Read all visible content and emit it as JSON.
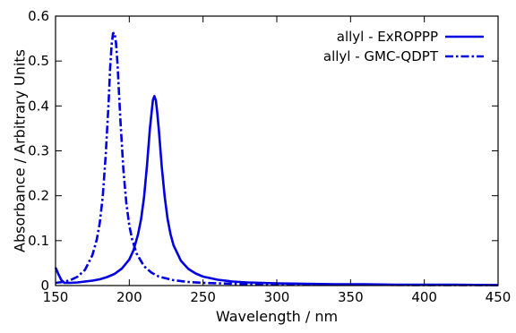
{
  "chart_data": {
    "type": "line",
    "xlabel": "Wavelength / nm",
    "ylabel": "Absorbance / Arbitrary Units",
    "xlim": [
      150,
      450
    ],
    "ylim": [
      0,
      0.6
    ],
    "xticks": [
      150,
      200,
      250,
      300,
      350,
      400,
      450
    ],
    "yticks": [
      0,
      0.1,
      0.2,
      0.3,
      0.4,
      0.5,
      0.6
    ],
    "xtick_labels": [
      "150",
      "200",
      "250",
      "300",
      "350",
      "400",
      "450"
    ],
    "ytick_labels": [
      "0",
      "0.1",
      "0.2",
      "0.3",
      "0.4",
      "0.5",
      "0.6"
    ],
    "grid": false,
    "legend_position": "top-right",
    "series": [
      {
        "name": "allyl - ExROPPP",
        "color": "#0000e0",
        "style": "solid",
        "x": [
          150,
          152,
          154,
          156,
          158,
          160,
          165,
          170,
          175,
          180,
          185,
          190,
          195,
          200,
          203,
          206,
          208,
          210,
          212,
          214,
          216,
          217,
          218,
          219,
          220,
          222,
          224,
          226,
          228,
          230,
          235,
          240,
          245,
          250,
          260,
          270,
          280,
          300,
          320,
          340,
          360,
          380,
          400,
          420,
          450
        ],
        "y": [
          0.04,
          0.025,
          0.012,
          0.006,
          0.006,
          0.006,
          0.007,
          0.009,
          0.011,
          0.014,
          0.019,
          0.026,
          0.038,
          0.058,
          0.08,
          0.115,
          0.148,
          0.197,
          0.268,
          0.351,
          0.413,
          0.422,
          0.412,
          0.384,
          0.347,
          0.264,
          0.197,
          0.148,
          0.114,
          0.09,
          0.055,
          0.037,
          0.027,
          0.02,
          0.013,
          0.009,
          0.007,
          0.005,
          0.004,
          0.003,
          0.003,
          0.002,
          0.002,
          0.002,
          0.001
        ]
      },
      {
        "name": "allyl - GMC-QDPT",
        "color": "#0000e0",
        "style": "dash-dot",
        "x": [
          150,
          155,
          160,
          165,
          170,
          175,
          178,
          180,
          182,
          184,
          186,
          187,
          188,
          189,
          190,
          191,
          192,
          193,
          194,
          196,
          198,
          200,
          202,
          205,
          210,
          215,
          220,
          230,
          240,
          250,
          270,
          300,
          350,
          400,
          450
        ],
        "y": [
          0.006,
          0.008,
          0.012,
          0.02,
          0.035,
          0.068,
          0.103,
          0.14,
          0.198,
          0.29,
          0.41,
          0.483,
          0.536,
          0.562,
          0.563,
          0.54,
          0.493,
          0.43,
          0.365,
          0.259,
          0.184,
          0.134,
          0.102,
          0.071,
          0.043,
          0.029,
          0.02,
          0.012,
          0.008,
          0.006,
          0.004,
          0.002,
          0.002,
          0.001,
          0.001
        ]
      }
    ]
  }
}
